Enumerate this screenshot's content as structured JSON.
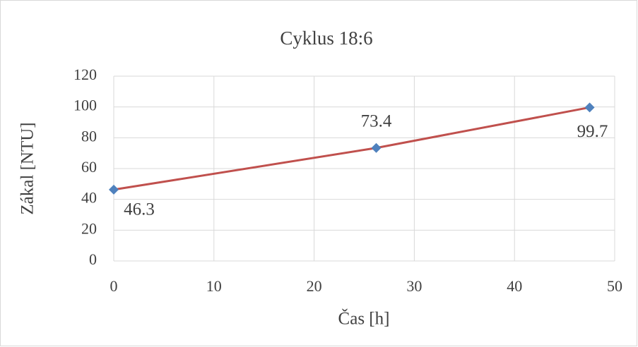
{
  "chart_data": {
    "type": "scatter",
    "title": "Cyklus 18:6",
    "x_label": "Čas [h]",
    "y_label": "Zákal [NTU]",
    "x": [
      0,
      26.2,
      47.5
    ],
    "values": [
      46.3,
      73.4,
      99.7
    ],
    "line_color": "#c0504d",
    "marker_color": "#4f81bd",
    "xlim": [
      0,
      50
    ],
    "xticks": [
      0,
      10,
      20,
      30,
      40,
      50
    ],
    "ylim": [
      0,
      120
    ],
    "yticks": [
      0,
      20,
      40,
      60,
      80,
      100,
      120
    ],
    "grid": true
  }
}
